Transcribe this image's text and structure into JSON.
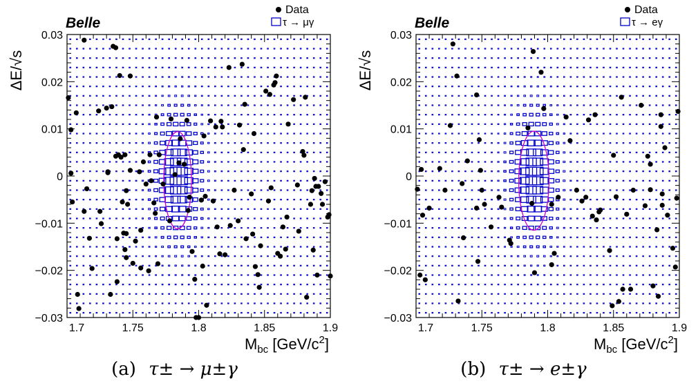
{
  "chart_data": [
    {
      "type": "scatter",
      "brand": "Belle",
      "xlabel_main": "M",
      "xlabel_sub": "bc",
      "xlabel_unit": " [GeV/c",
      "xlabel_sup": "2",
      "xlabel_end": "]",
      "ylabel": "ΔE/√s",
      "xlim": [
        1.7,
        1.9
      ],
      "ylim": [
        -0.03,
        0.03
      ],
      "x_ticks": [
        "1.7",
        "1.75",
        "1.8",
        "1.85",
        "1.9"
      ],
      "y_ticks": [
        "0.03",
        "0.02",
        "0.01",
        "0",
        "−0.01",
        "−0.02",
        "−0.03"
      ],
      "legend": [
        "Data",
        "τ → μγ"
      ],
      "colors": {
        "data": "#000000",
        "signal_box": "#0000cc",
        "ellipse": "#cc00cc"
      },
      "signal_region": {
        "center": [
          1.784,
          -0.0009
        ],
        "half_width": 0.0105,
        "half_height": 0.0103
      },
      "signal_mc": {
        "center": [
          1.784,
          0.0
        ],
        "x_bin": 0.005,
        "y_bin": 0.002,
        "sigma_x": 0.0075,
        "sigma_y": 0.0055
      },
      "caption_label": "(a)",
      "caption_math": "τ± → μ±γ",
      "data_points": [
        [
          1.701,
          0.0166
        ],
        [
          1.703,
          0.0098
        ],
        [
          1.703,
          0.0006
        ],
        [
          1.704,
          -0.0055
        ],
        [
          1.707,
          0.0134
        ],
        [
          1.708,
          -0.0251
        ],
        [
          1.709,
          -0.0281
        ],
        [
          1.713,
          0.0288
        ],
        [
          1.713,
          -0.0075
        ],
        [
          1.715,
          -0.0027
        ],
        [
          1.717,
          -0.0132
        ],
        [
          1.719,
          -0.0196
        ],
        [
          1.724,
          0.0138
        ],
        [
          1.725,
          -0.0075
        ],
        [
          1.726,
          -0.0101
        ],
        [
          1.73,
          0.0144
        ],
        [
          1.731,
          0.0009
        ],
        [
          1.731,
          0.0007
        ],
        [
          1.733,
          -0.0251
        ],
        [
          1.734,
          0.0147
        ],
        [
          1.735,
          0.0275
        ],
        [
          1.737,
          0.0272
        ],
        [
          1.737,
          0.0042
        ],
        [
          1.738,
          -0.0133
        ],
        [
          1.738,
          -0.0224
        ],
        [
          1.739,
          0.0045
        ],
        [
          1.74,
          0.0213
        ],
        [
          1.741,
          0.004
        ],
        [
          1.742,
          -0.0055
        ],
        [
          1.743,
          -0.0121
        ],
        [
          1.744,
          0.0045
        ],
        [
          1.744,
          -0.0156
        ],
        [
          1.745,
          -0.0173
        ],
        [
          1.745,
          -0.0122
        ],
        [
          1.745,
          -0.0031
        ],
        [
          1.746,
          -0.006
        ],
        [
          1.748,
          0.0212
        ],
        [
          1.748,
          0.0012
        ],
        [
          1.75,
          -0.0185
        ],
        [
          1.752,
          -0.0138
        ],
        [
          1.755,
          0.0009
        ],
        [
          1.756,
          -0.0115
        ],
        [
          1.756,
          -0.0195
        ],
        [
          1.758,
          0.003
        ],
        [
          1.76,
          -0.0017
        ],
        [
          1.762,
          -0.0201
        ],
        [
          1.763,
          0.0045
        ],
        [
          1.764,
          -0.001
        ],
        [
          1.766,
          -0.0057
        ],
        [
          1.767,
          -0.0079
        ],
        [
          1.768,
          0.0125
        ],
        [
          1.769,
          -0.0186
        ],
        [
          1.77,
          0.0045
        ],
        [
          1.773,
          -0.0017
        ],
        [
          1.778,
          -0.0095
        ],
        [
          1.779,
          0.0121
        ],
        [
          1.782,
          0.0003
        ],
        [
          1.785,
          0.0028
        ],
        [
          1.786,
          0.0079
        ],
        [
          1.789,
          0.0025
        ],
        [
          1.791,
          0.0118
        ],
        [
          1.792,
          -0.0073
        ],
        [
          1.793,
          -0.0045
        ],
        [
          1.795,
          -0.016
        ],
        [
          1.797,
          -0.0219
        ],
        [
          1.798,
          -0.03
        ],
        [
          1.8,
          -0.03
        ],
        [
          1.802,
          -0.0051
        ],
        [
          1.803,
          -0.0191
        ],
        [
          1.804,
          0.0085
        ],
        [
          1.805,
          -0.0043
        ],
        [
          1.806,
          -0.0274
        ],
        [
          1.809,
          0.0117
        ],
        [
          1.811,
          -0.0053
        ],
        [
          1.813,
          0.0104
        ],
        [
          1.814,
          -0.0108
        ],
        [
          1.816,
          -0.0165
        ],
        [
          1.817,
          0.0116
        ],
        [
          1.818,
          0.0104
        ],
        [
          1.82,
          -0.0167
        ],
        [
          1.823,
          0.023
        ],
        [
          1.824,
          -0.0105
        ],
        [
          1.827,
          -0.003
        ],
        [
          1.83,
          -0.0095
        ],
        [
          1.831,
          0.0108
        ],
        [
          1.833,
          0.0237
        ],
        [
          1.834,
          0.0056
        ],
        [
          1.835,
          0.0152
        ],
        [
          1.836,
          -0.0133
        ],
        [
          1.84,
          -0.0038
        ],
        [
          1.841,
          -0.0123
        ],
        [
          1.842,
          0.009
        ],
        [
          1.843,
          -0.0192
        ],
        [
          1.845,
          -0.0209
        ],
        [
          1.846,
          -0.0236
        ],
        [
          1.847,
          -0.0148
        ],
        [
          1.851,
          0.018
        ],
        [
          1.853,
          -0.0053
        ],
        [
          1.854,
          0.0173
        ],
        [
          1.855,
          -0.0025
        ],
        [
          1.857,
          0.0193
        ],
        [
          1.858,
          0.0198
        ],
        [
          1.859,
          0.0212
        ],
        [
          1.86,
          -0.0164
        ],
        [
          1.862,
          -0.017
        ],
        [
          1.864,
          -0.0108
        ],
        [
          1.866,
          -0.0155
        ],
        [
          1.867,
          -0.0087
        ],
        [
          1.868,
          0.011
        ],
        [
          1.872,
          0.0162
        ],
        [
          1.875,
          -0.0019
        ],
        [
          1.876,
          -0.0117
        ],
        [
          1.879,
          0.0052
        ],
        [
          1.88,
          0.0044
        ],
        [
          1.881,
          0.0167
        ],
        [
          1.882,
          -0.0257
        ],
        [
          1.885,
          -0.006
        ],
        [
          1.886,
          -0.0031
        ],
        [
          1.887,
          -0.0157
        ],
        [
          1.888,
          -0.0005
        ],
        [
          1.889,
          -0.0022
        ],
        [
          1.89,
          -0.021
        ],
        [
          1.891,
          -0.0022
        ],
        [
          1.893,
          -0.0037
        ],
        [
          1.894,
          -0.006
        ],
        [
          1.896,
          -0.0012
        ],
        [
          1.898,
          -0.0087
        ],
        [
          1.899,
          -0.0082
        ],
        [
          1.9,
          -0.0212
        ]
      ]
    },
    {
      "type": "scatter",
      "brand": "Belle",
      "xlabel_main": "M",
      "xlabel_sub": "bc",
      "xlabel_unit": " [GeV/c",
      "xlabel_sup": "2",
      "xlabel_end": "]",
      "ylabel": "ΔE/√s",
      "xlim": [
        1.7,
        1.9
      ],
      "ylim": [
        -0.03,
        0.03
      ],
      "x_ticks": [
        "1.7",
        "1.75",
        "1.8",
        "1.85",
        "1.9"
      ],
      "y_ticks": [
        "0.03",
        "0.02",
        "0.01",
        "0",
        "−0.01",
        "−0.02",
        "−0.03"
      ],
      "legend": [
        "Data",
        "τ → eγ"
      ],
      "colors": {
        "data": "#000000",
        "signal_box": "#0000cc",
        "ellipse": "#cc00cc"
      },
      "signal_region": {
        "center": [
          1.7895,
          -0.001
        ],
        "half_width": 0.0115,
        "half_height": 0.0105
      },
      "signal_mc": {
        "center": [
          1.7895,
          0.0
        ],
        "x_bin": 0.005,
        "y_bin": 0.002,
        "sigma_x": 0.0075,
        "sigma_y": 0.0055
      },
      "caption_label": "(b)",
      "caption_math": "τ± → e±γ",
      "data_points": [
        [
          1.701,
          -0.0028
        ],
        [
          1.703,
          -0.021
        ],
        [
          1.704,
          0.0014
        ],
        [
          1.705,
          -0.0083
        ],
        [
          1.707,
          -0.022
        ],
        [
          1.71,
          -0.0068
        ],
        [
          1.718,
          0.0016
        ],
        [
          1.722,
          -0.003
        ],
        [
          1.726,
          0.0107
        ],
        [
          1.728,
          0.028
        ],
        [
          1.731,
          0.0212
        ],
        [
          1.732,
          -0.0265
        ],
        [
          1.735,
          -0.0016
        ],
        [
          1.736,
          -0.0131
        ],
        [
          1.739,
          0.0032
        ],
        [
          1.746,
          0.0172
        ],
        [
          1.746,
          -0.0068
        ],
        [
          1.747,
          -0.0181
        ],
        [
          1.748,
          0.0077
        ],
        [
          1.749,
          0.0012
        ],
        [
          1.75,
          -0.003
        ],
        [
          1.752,
          -0.006
        ],
        [
          1.757,
          -0.0108
        ],
        [
          1.763,
          -0.0045
        ],
        [
          1.765,
          -0.0066
        ],
        [
          1.771,
          -0.0136
        ],
        [
          1.772,
          -0.0143
        ],
        [
          1.785,
          0.0102
        ],
        [
          1.788,
          -0.0058
        ],
        [
          1.789,
          0.0264
        ],
        [
          1.79,
          -0.0205
        ],
        [
          1.795,
          0.022
        ],
        [
          1.797,
          0.0143
        ],
        [
          1.803,
          -0.006
        ],
        [
          1.803,
          -0.0188
        ],
        [
          1.805,
          -0.0164
        ],
        [
          1.808,
          -0.0045
        ],
        [
          1.814,
          0.0125
        ],
        [
          1.817,
          0.0075
        ],
        [
          1.822,
          -0.003
        ],
        [
          1.826,
          -0.0053
        ],
        [
          1.829,
          -0.0045
        ],
        [
          1.831,
          0.0119
        ],
        [
          1.834,
          -0.0085
        ],
        [
          1.836,
          0.013
        ],
        [
          1.837,
          -0.0093
        ],
        [
          1.839,
          -0.0076
        ],
        [
          1.84,
          -0.0072
        ],
        [
          1.847,
          -0.0158
        ],
        [
          1.849,
          -0.0275
        ],
        [
          1.85,
          0.0044
        ],
        [
          1.852,
          -0.0044
        ],
        [
          1.854,
          -0.0266
        ],
        [
          1.856,
          0.0167
        ],
        [
          1.857,
          -0.024
        ],
        [
          1.86,
          -0.0081
        ],
        [
          1.863,
          -0.024
        ],
        [
          1.865,
          -0.003
        ],
        [
          1.871,
          0.015
        ],
        [
          1.874,
          -0.0063
        ],
        [
          1.876,
          0.0042
        ],
        [
          1.878,
          0.0025
        ],
        [
          1.878,
          -0.0029
        ],
        [
          1.88,
          -0.0233
        ],
        [
          1.883,
          -0.0114
        ],
        [
          1.884,
          -0.0255
        ],
        [
          1.886,
          0.013
        ],
        [
          1.886,
          0.0105
        ],
        [
          1.887,
          -0.0062
        ],
        [
          1.887,
          -0.0038
        ],
        [
          1.889,
          0.006
        ],
        [
          1.891,
          -0.0083
        ],
        [
          1.895,
          -0.0153
        ],
        [
          1.897,
          -0.0193
        ],
        [
          1.898,
          -0.0047
        ],
        [
          1.899,
          0.0137
        ]
      ]
    }
  ]
}
